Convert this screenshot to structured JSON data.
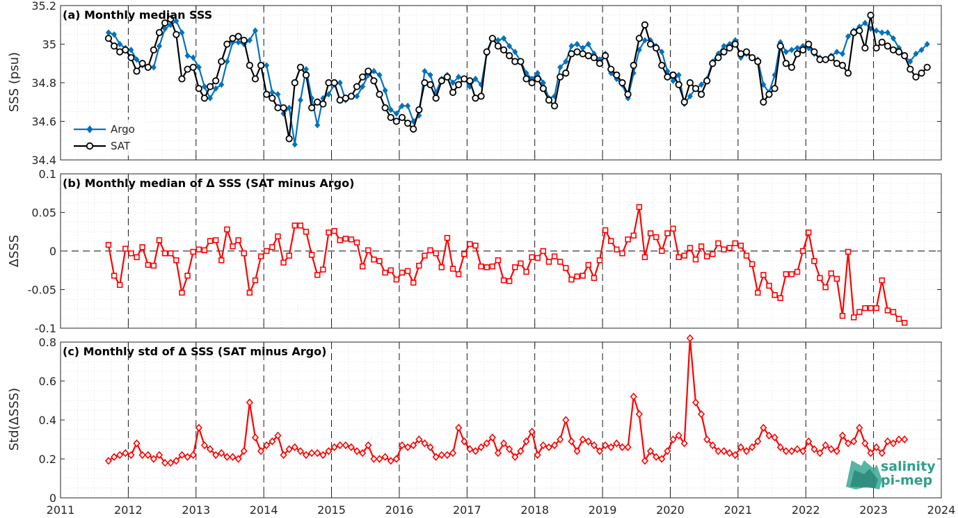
{
  "logo": {
    "line1": "salinity",
    "line2": "pi-mep",
    "color": "#2f9f8a"
  },
  "chart_data": [
    {
      "type": "line",
      "title": "(a) Monthly median SSS",
      "ylabel": "SSS (psu)",
      "xlim": [
        2011,
        2024
      ],
      "ylim": [
        34.4,
        35.2
      ],
      "yticks": [
        "34.4",
        "34.6",
        "34.8",
        "35",
        "35.2"
      ],
      "x_start": 2011.708,
      "x_step_months": 1,
      "grid": "dotted minor, dashed major vertical at years",
      "legend_position": "bottom-left",
      "series": [
        {
          "name": "Argo",
          "color": "#0072BD",
          "marker": "filled-diamond",
          "values": [
            35.06,
            35.05,
            35.0,
            34.98,
            34.97,
            34.92,
            34.89,
            34.88,
            34.88,
            34.99,
            35.08,
            35.1,
            35.12,
            35.06,
            34.94,
            34.93,
            34.88,
            34.78,
            34.72,
            34.77,
            34.79,
            34.91,
            35.01,
            35.01,
            35.0,
            35.02,
            35.07,
            34.89,
            34.89,
            34.75,
            34.74,
            34.64,
            34.67,
            34.48,
            34.71,
            34.87,
            34.72,
            34.58,
            34.72,
            34.74,
            34.79,
            34.8,
            34.71,
            34.73,
            34.73,
            34.78,
            34.84,
            34.86,
            34.84,
            34.76,
            34.66,
            34.64,
            34.68,
            34.68,
            34.6,
            34.63,
            34.86,
            34.84,
            34.75,
            34.82,
            34.84,
            34.8,
            34.83,
            34.82,
            34.78,
            34.82,
            34.79,
            34.95,
            35.03,
            35.02,
            35.03,
            34.99,
            34.96,
            34.91,
            34.85,
            34.82,
            34.85,
            34.8,
            34.72,
            34.73,
            34.88,
            34.91,
            34.99,
            35.0,
            34.98,
            35.0,
            34.95,
            34.92,
            34.95,
            34.85,
            34.82,
            34.79,
            34.72,
            34.85,
            34.97,
            35.02,
            35.02,
            34.99,
            34.96,
            34.86,
            34.81,
            34.84,
            34.69,
            34.73,
            34.77,
            34.79,
            34.82,
            34.91,
            34.95,
            34.99,
            35.0,
            35.02,
            34.93,
            34.95,
            34.93,
            34.92,
            34.79,
            34.75,
            34.84,
            35.01,
            34.96,
            34.97,
            34.98,
            34.99,
            34.98,
            34.95,
            34.93,
            34.92,
            34.94,
            34.96,
            34.95,
            35.04,
            35.07,
            35.09,
            35.11,
            35.08,
            35.07,
            35.06,
            35.06,
            35.03,
            34.98,
            34.94,
            34.91,
            34.95,
            34.97,
            35.0
          ]
        },
        {
          "name": "SAT",
          "color": "#000000",
          "marker": "open-circle",
          "values": [
            35.03,
            34.99,
            34.96,
            34.97,
            34.93,
            34.86,
            34.9,
            34.88,
            34.97,
            35.06,
            35.11,
            35.13,
            35.05,
            34.82,
            34.87,
            34.88,
            34.77,
            34.72,
            34.78,
            34.81,
            34.91,
            35.0,
            35.03,
            35.04,
            35.02,
            34.89,
            34.82,
            34.89,
            34.74,
            34.72,
            34.67,
            34.67,
            34.51,
            34.8,
            34.88,
            34.84,
            34.67,
            34.7,
            34.69,
            34.8,
            34.8,
            34.71,
            34.72,
            34.73,
            34.78,
            34.83,
            34.86,
            34.81,
            34.74,
            34.67,
            34.62,
            34.6,
            34.62,
            34.59,
            34.56,
            34.66,
            34.8,
            34.79,
            34.72,
            34.81,
            34.83,
            34.75,
            34.79,
            34.82,
            34.81,
            34.72,
            34.73,
            34.96,
            35.03,
            34.99,
            34.97,
            34.94,
            34.91,
            34.91,
            34.82,
            34.8,
            34.82,
            34.77,
            34.71,
            34.68,
            34.83,
            34.85,
            34.95,
            34.96,
            34.95,
            34.94,
            34.93,
            34.9,
            34.94,
            34.87,
            34.84,
            34.8,
            34.74,
            34.89,
            35.03,
            35.1,
            35.0,
            34.98,
            34.89,
            34.83,
            34.84,
            34.79,
            34.7,
            34.8,
            34.77,
            34.74,
            34.81,
            34.9,
            34.93,
            34.96,
            34.98,
            35.0,
            34.95,
            34.96,
            34.93,
            34.91,
            34.7,
            34.74,
            34.77,
            34.99,
            34.9,
            34.88,
            34.95,
            34.97,
            35.0,
            34.96,
            34.92,
            34.92,
            34.93,
            34.9,
            34.89,
            34.85,
            35.06,
            35.07,
            34.98,
            35.15,
            34.98,
            35.01,
            34.99,
            34.97,
            34.96,
            34.94,
            34.87,
            34.83,
            34.85,
            34.88
          ]
        }
      ]
    },
    {
      "type": "line",
      "title": "(b) Monthly median of Δ SSS (SAT minus Argo)",
      "ylabel": "ΔSSS",
      "xlim": [
        2011,
        2024
      ],
      "ylim": [
        -0.1,
        0.1
      ],
      "yticks": [
        "-0.1",
        "-0.05",
        "0",
        "0.05",
        "0.1"
      ],
      "x_start": 2011.708,
      "x_step_months": 1,
      "reference_line": 0,
      "series": [
        {
          "name": "",
          "color": "#FF0000",
          "marker": "open-square",
          "values": [
            0.008,
            -0.032,
            -0.044,
            0.003,
            -0.003,
            -0.008,
            0.005,
            -0.018,
            -0.019,
            0.014,
            -0.003,
            -0.003,
            -0.012,
            -0.054,
            -0.032,
            -0.001,
            0.002,
            0.001,
            0.013,
            0.014,
            -0.012,
            0.028,
            0.006,
            0.014,
            -0.003,
            -0.054,
            -0.038,
            -0.007,
            0.0,
            0.005,
            0.019,
            -0.015,
            -0.006,
            0.033,
            0.033,
            0.025,
            -0.005,
            -0.031,
            -0.024,
            0.024,
            0.026,
            0.014,
            0.016,
            0.015,
            0.011,
            -0.02,
            0.001,
            -0.011,
            -0.013,
            -0.028,
            -0.025,
            -0.037,
            -0.028,
            -0.026,
            -0.041,
            -0.019,
            -0.006,
            0.001,
            -0.003,
            -0.021,
            0.017,
            -0.023,
            -0.03,
            -0.004,
            0.009,
            0.007,
            -0.02,
            -0.021,
            -0.02,
            -0.012,
            -0.038,
            -0.039,
            -0.021,
            -0.016,
            -0.027,
            -0.008,
            -0.009,
            0.0,
            -0.014,
            -0.007,
            -0.014,
            -0.022,
            -0.037,
            -0.033,
            -0.032,
            -0.018,
            -0.035,
            -0.012,
            0.027,
            0.013,
            0.002,
            -0.003,
            0.015,
            0.02,
            0.057,
            -0.008,
            0.023,
            0.018,
            0.0,
            0.023,
            0.029,
            -0.008,
            -0.006,
            0.004,
            -0.011,
            0.006,
            -0.007,
            -0.004,
            0.01,
            0.002,
            0.004,
            0.01,
            0.007,
            -0.006,
            -0.017,
            -0.054,
            -0.031,
            -0.045,
            -0.057,
            -0.061,
            -0.03,
            -0.03,
            -0.027,
            0.0,
            0.024,
            -0.013,
            -0.035,
            -0.047,
            -0.029,
            -0.036,
            -0.084,
            -0.001,
            -0.086,
            -0.079,
            -0.074,
            -0.074,
            -0.074,
            -0.038,
            -0.077,
            -0.079,
            -0.088,
            -0.093
          ]
        }
      ]
    },
    {
      "type": "line",
      "title": "(c) Monthly std of Δ SSS (SAT minus Argo)",
      "ylabel": "Std(ΔSSS)",
      "xlim": [
        2011,
        2024
      ],
      "ylim": [
        0,
        0.8
      ],
      "yticks": [
        "0",
        "0.2",
        "0.4",
        "0.6",
        "0.8"
      ],
      "xticks": [
        "2011",
        "2012",
        "2013",
        "2014",
        "2015",
        "2016",
        "2017",
        "2018",
        "2019",
        "2020",
        "2021",
        "2022",
        "2023",
        "2024"
      ],
      "x_start": 2011.708,
      "x_step_months": 1,
      "series": [
        {
          "name": "",
          "color": "#FF0000",
          "marker": "open-diamond",
          "values": [
            0.19,
            0.21,
            0.22,
            0.23,
            0.22,
            0.28,
            0.22,
            0.22,
            0.2,
            0.22,
            0.18,
            0.18,
            0.19,
            0.22,
            0.21,
            0.22,
            0.36,
            0.27,
            0.25,
            0.22,
            0.23,
            0.21,
            0.21,
            0.2,
            0.24,
            0.49,
            0.31,
            0.24,
            0.27,
            0.29,
            0.32,
            0.22,
            0.25,
            0.26,
            0.24,
            0.22,
            0.23,
            0.23,
            0.22,
            0.24,
            0.26,
            0.27,
            0.27,
            0.26,
            0.24,
            0.23,
            0.27,
            0.2,
            0.2,
            0.21,
            0.19,
            0.2,
            0.27,
            0.26,
            0.27,
            0.3,
            0.28,
            0.26,
            0.21,
            0.22,
            0.22,
            0.23,
            0.36,
            0.29,
            0.25,
            0.24,
            0.26,
            0.28,
            0.31,
            0.23,
            0.28,
            0.25,
            0.21,
            0.24,
            0.29,
            0.34,
            0.22,
            0.27,
            0.26,
            0.27,
            0.3,
            0.4,
            0.29,
            0.24,
            0.3,
            0.29,
            0.27,
            0.24,
            0.27,
            0.26,
            0.28,
            0.26,
            0.26,
            0.52,
            0.43,
            0.19,
            0.24,
            0.21,
            0.2,
            0.24,
            0.3,
            0.32,
            0.28,
            0.82,
            0.49,
            0.43,
            0.3,
            0.27,
            0.24,
            0.24,
            0.23,
            0.22,
            0.26,
            0.24,
            0.26,
            0.29,
            0.36,
            0.32,
            0.31,
            0.26,
            0.24,
            0.24,
            0.25,
            0.24,
            0.29,
            0.25,
            0.23,
            0.27,
            0.25,
            0.24,
            0.32,
            0.28,
            0.29,
            0.36,
            0.28,
            0.23,
            0.26,
            0.23,
            0.29,
            0.28,
            0.3,
            0.3
          ]
        }
      ]
    }
  ]
}
